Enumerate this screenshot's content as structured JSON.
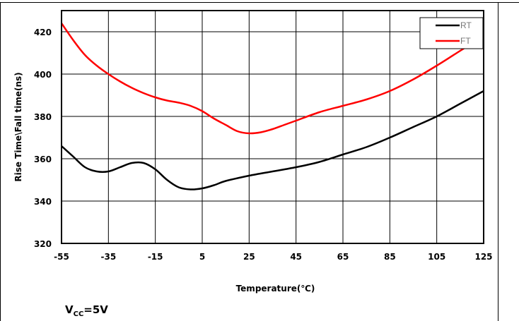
{
  "chart_data": {
    "type": "line",
    "title": "",
    "xlabel": "Temperature(℃)",
    "ylabel": "Rise Time\\Fall time(ns)",
    "xlim": [
      -55,
      125
    ],
    "ylim": [
      320,
      430
    ],
    "xticks": [
      -55,
      -35,
      -15,
      5,
      25,
      45,
      65,
      85,
      105,
      125
    ],
    "yticks": [
      320,
      340,
      360,
      380,
      400,
      420
    ],
    "grid": true,
    "legend_position": "top-right",
    "series": [
      {
        "name": "RT",
        "color": "#000000",
        "x": [
          -55,
          -50,
          -45,
          -40,
          -35,
          -30,
          -25,
          -20,
          -15,
          -10,
          -5,
          0,
          5,
          10,
          15,
          25,
          35,
          45,
          55,
          65,
          75,
          85,
          95,
          105,
          115,
          125
        ],
        "y": [
          366,
          361,
          356,
          354,
          354,
          356,
          358,
          358,
          355,
          350,
          346.5,
          345.5,
          346,
          347.5,
          349.5,
          352,
          354,
          356,
          358.5,
          362,
          365.5,
          370,
          375,
          380,
          386,
          392
        ]
      },
      {
        "name": "FT",
        "color": "#ff0000",
        "x": [
          -55,
          -50,
          -45,
          -40,
          -35,
          -30,
          -25,
          -20,
          -15,
          -10,
          -5,
          0,
          5,
          10,
          15,
          20,
          25,
          30,
          35,
          40,
          45,
          55,
          65,
          75,
          85,
          95,
          105,
          115,
          125
        ],
        "y": [
          424,
          416,
          409,
          404,
          400,
          396.5,
          393.5,
          391,
          389,
          387.5,
          386.5,
          385,
          382.5,
          379,
          376,
          373,
          372,
          372.5,
          374,
          376,
          378,
          382,
          385,
          388,
          392,
          397.5,
          404,
          411,
          418
        ]
      }
    ]
  },
  "annotation": {
    "vcc_main": "V",
    "vcc_sub": "CC",
    "vcc_value": "=5V"
  }
}
